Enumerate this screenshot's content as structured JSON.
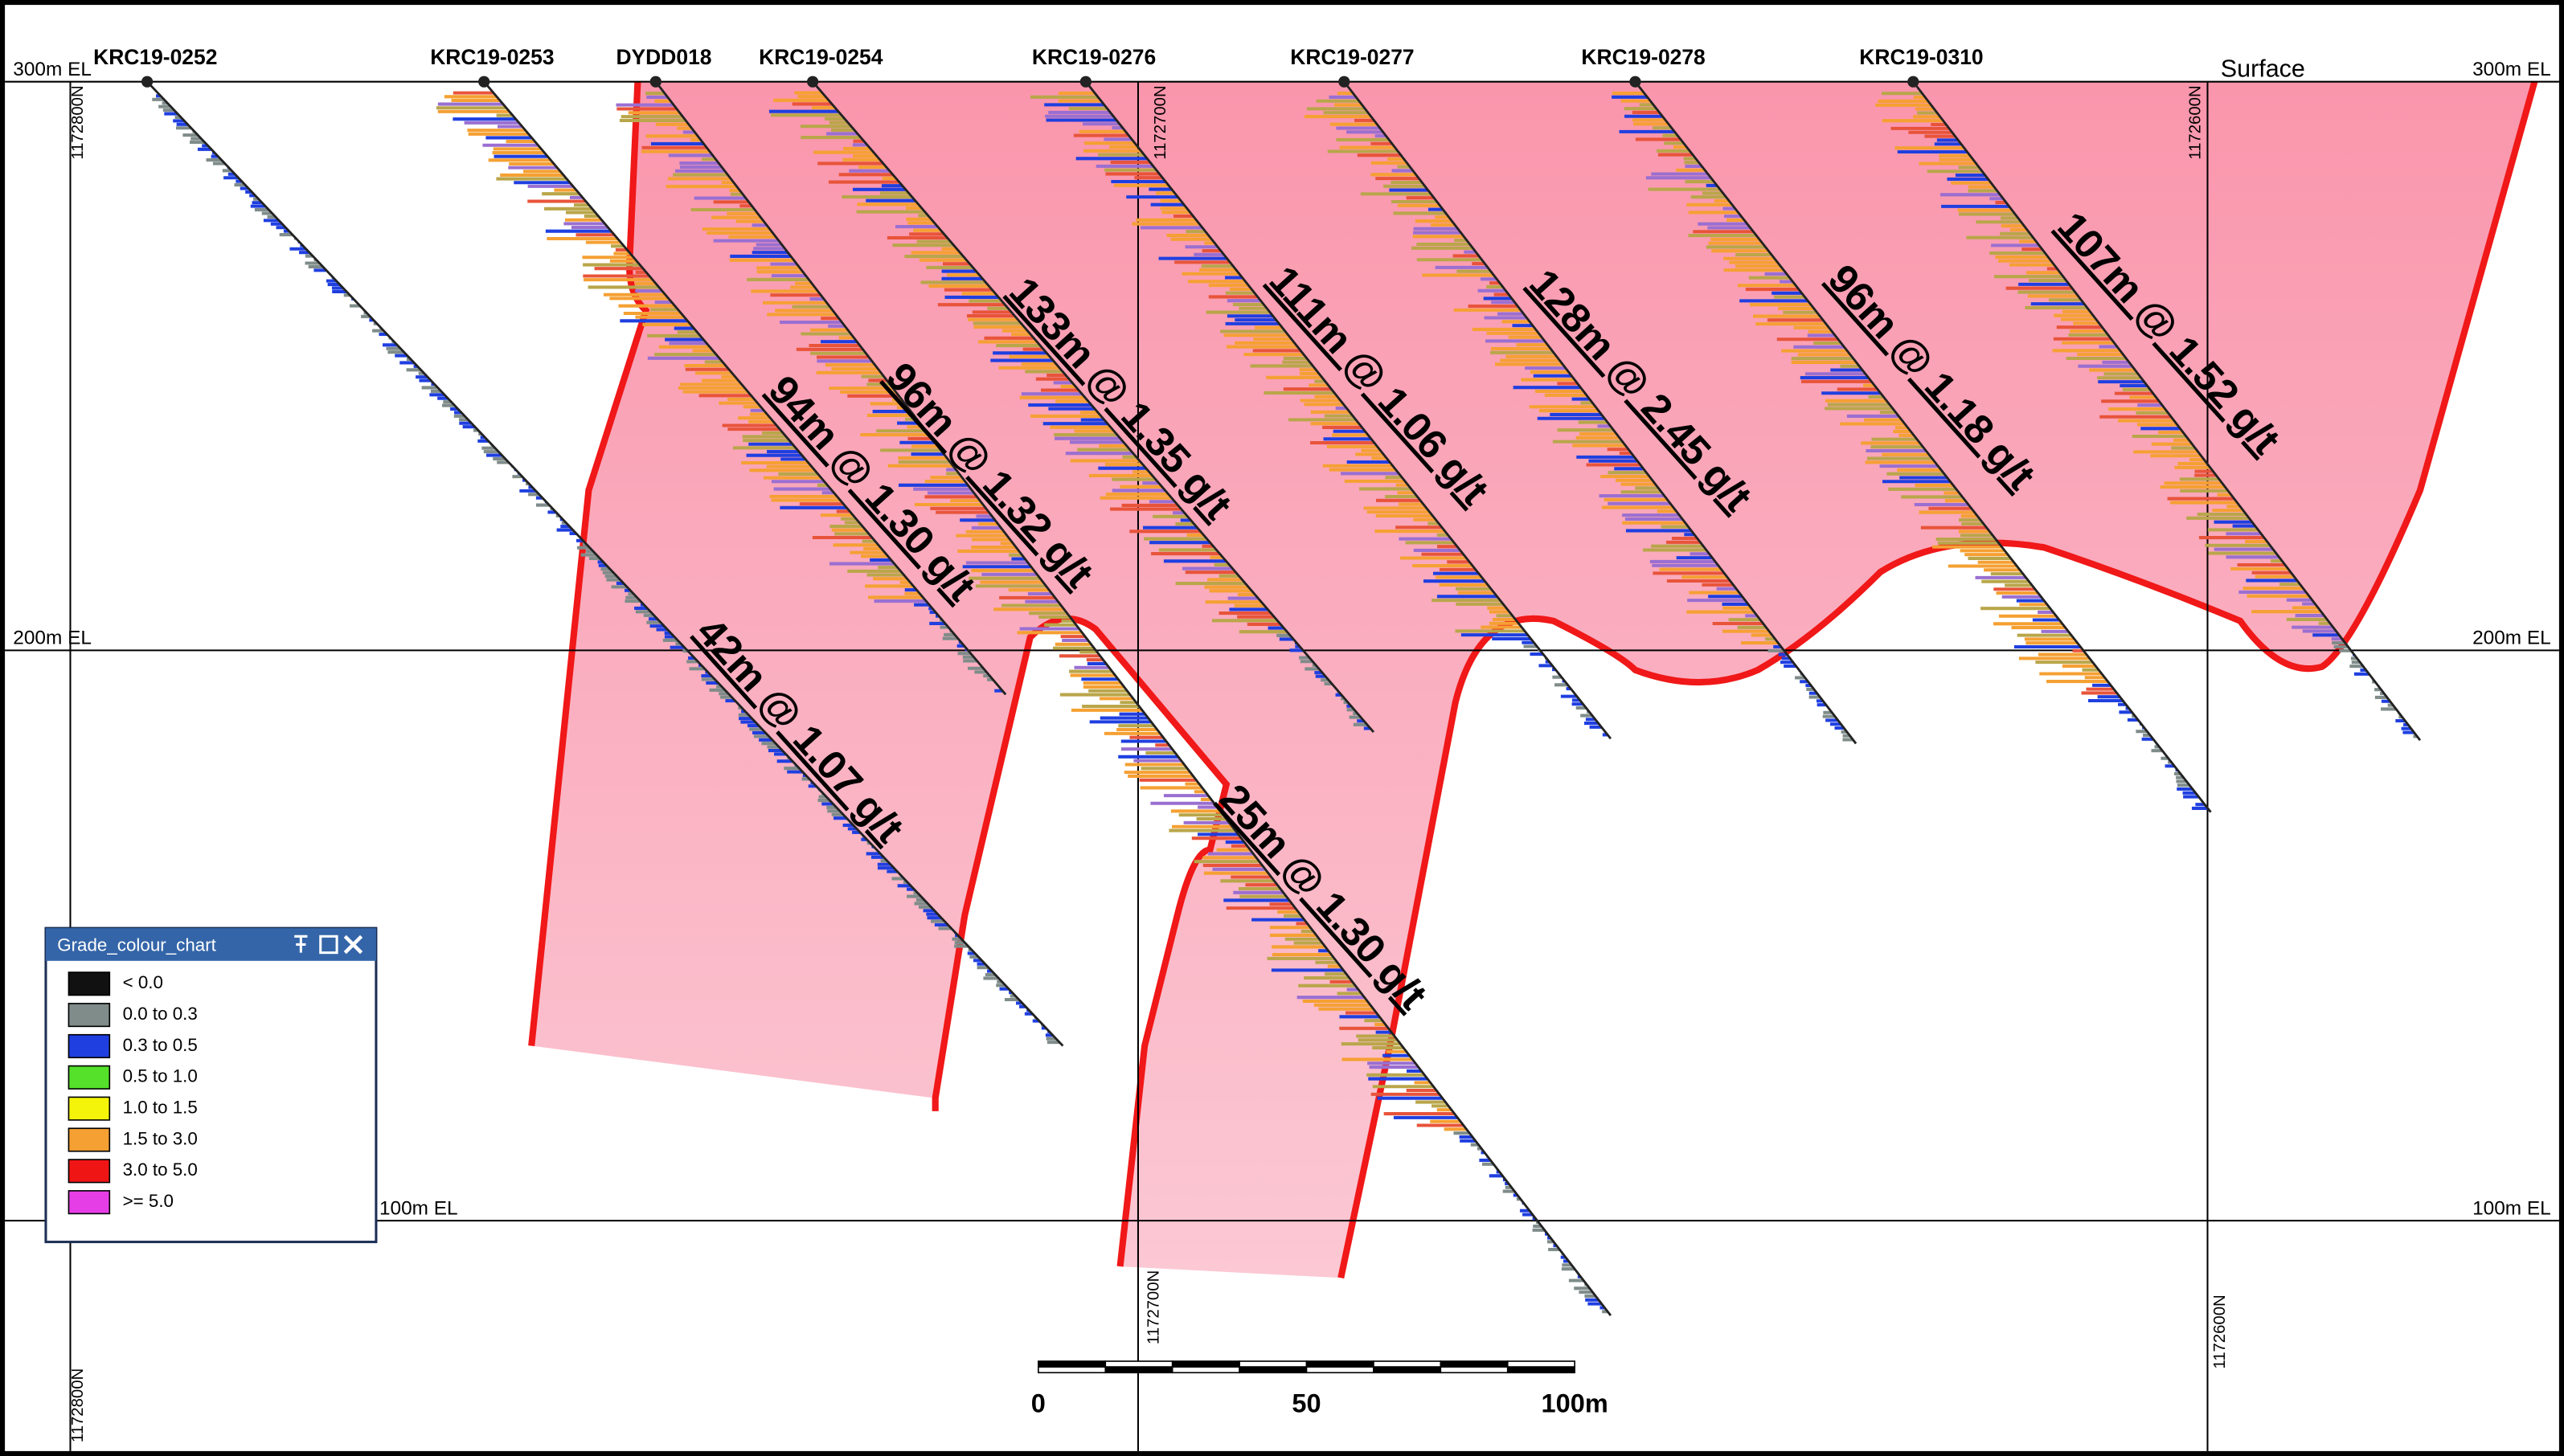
{
  "drill_holes": [
    "KRC19-0252",
    "KRC19-0253",
    "DYDD018",
    "KRC19-0254",
    "KRC19-0276",
    "KRC19-0277",
    "KRC19-0278",
    "KRC19-0310"
  ],
  "surface_label": "Surface",
  "elevation_labels": {
    "left": [
      "300m EL",
      "200m EL",
      "100m EL"
    ],
    "right": [
      "300m EL",
      "200m EL",
      "100m EL"
    ]
  },
  "northing_labels": {
    "top": [
      "1172800N",
      "1172700N",
      "1172600N"
    ],
    "bottom": [
      "1172800N",
      "1172700N",
      "1172600N"
    ]
  },
  "intercepts": [
    "42m @ 1.07 g/t",
    "94m @ 1.30 g/t",
    "96m @ 1.32 g/t",
    "133m @ 1.35 g/t",
    "111m @ 1.06 g/t",
    "128m @ 2.45 g/t",
    "96m @ 1.18 g/t",
    "107m @ 1.52 g/t",
    "25m @ 1.30 g/t"
  ],
  "legend": {
    "title": "Grade_colour_chart",
    "items": [
      {
        "label": "< 0.0",
        "color": "#111111"
      },
      {
        "label": "0.0 to 0.3",
        "color": "#7f8c8a"
      },
      {
        "label": "0.3 to 0.5",
        "color": "#1f3fe0"
      },
      {
        "label": "0.5 to 1.0",
        "color": "#55e02a"
      },
      {
        "label": "1.0 to 1.5",
        "color": "#f4f40a"
      },
      {
        "label": "1.5 to 3.0",
        "color": "#f5a033"
      },
      {
        "label": "3.0 to 5.0",
        "color": "#f01515"
      },
      {
        "label": ">= 5.0",
        "color": "#e63ee6"
      }
    ]
  },
  "scale_bar": {
    "labels": [
      "0",
      "50",
      "100m"
    ]
  }
}
